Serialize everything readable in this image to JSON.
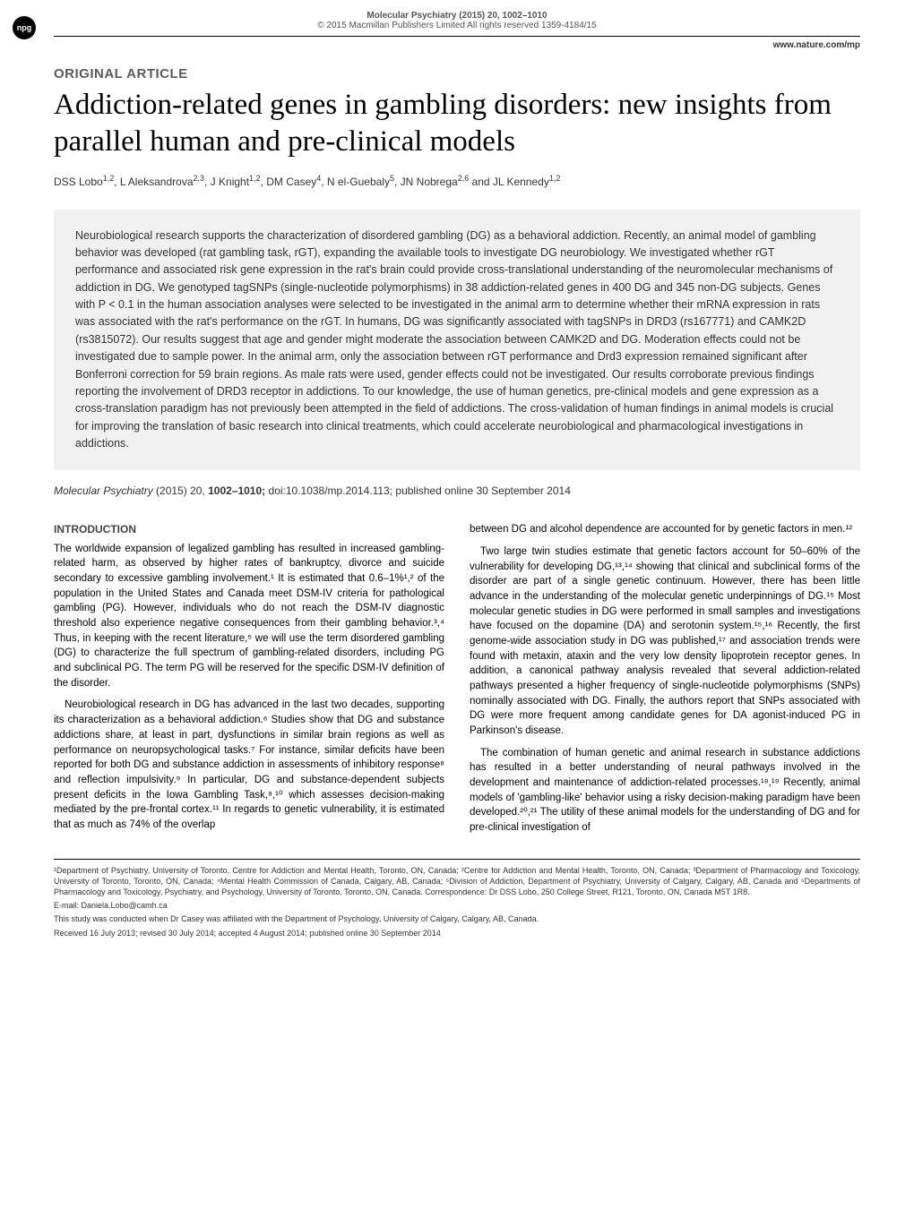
{
  "header": {
    "npg": "npg",
    "journal_line": "Molecular Psychiatry (2015) 20, 1002–1010",
    "copyright": "© 2015 Macmillan Publishers Limited   All rights reserved 1359-4184/15",
    "website": "www.nature.com/mp"
  },
  "article": {
    "type": "ORIGINAL ARTICLE",
    "title": "Addiction-related genes in gambling disorders: new insights from parallel human and pre-clinical models",
    "authors_html": "DSS Lobo<sup>1,2</sup>, L Aleksandrova<sup>2,3</sup>, J Knight<sup>1,2</sup>, DM Casey<sup>4</sup>, N el-Guebaly<sup>5</sup>, JN Nobrega<sup>2,6</sup> and JL Kennedy<sup>1,2</sup>"
  },
  "abstract": "Neurobiological research supports the characterization of disordered gambling (DG) as a behavioral addiction. Recently, an animal model of gambling behavior was developed (rat gambling task, rGT), expanding the available tools to investigate DG neurobiology. We investigated whether rGT performance and associated risk gene expression in the rat's brain could provide cross-translational understanding of the neuromolecular mechanisms of addiction in DG. We genotyped tagSNPs (single-nucleotide polymorphisms) in 38 addiction-related genes in 400 DG and 345 non-DG subjects. Genes with P < 0.1 in the human association analyses were selected to be investigated in the animal arm to determine whether their mRNA expression in rats was associated with the rat's performance on the rGT. In humans, DG was significantly associated with tagSNPs in DRD3 (rs167771) and CAMK2D (rs3815072). Our results suggest that age and gender might moderate the association between CAMK2D and DG. Moderation effects could not be investigated due to sample power. In the animal arm, only the association between rGT performance and Drd3 expression remained significant after Bonferroni correction for 59 brain regions. As male rats were used, gender effects could not be investigated. Our results corroborate previous findings reporting the involvement of DRD3 receptor in addictions. To our knowledge, the use of human genetics, pre-clinical models and gene expression as a cross-translation paradigm has not previously been attempted in the field of addictions. The cross-validation of human findings in animal models is crucial for improving the translation of basic research into clinical treatments, which could accelerate neurobiological and pharmacological investigations in addictions.",
  "citation": {
    "journal": "Molecular Psychiatry",
    "year_vol": "(2015) 20,",
    "pages": "1002–1010;",
    "doi": "doi:10.1038/mp.2014.113; published online 30 September 2014"
  },
  "body": {
    "heading": "INTRODUCTION",
    "left": {
      "p1": "The worldwide expansion of legalized gambling has resulted in increased gambling-related harm, as observed by higher rates of bankruptcy, divorce and suicide secondary to excessive gambling involvement.¹ It is estimated that 0.6–1%¹,² of the population in the United States and Canada meet DSM-IV criteria for pathological gambling (PG). However, individuals who do not reach the DSM-IV diagnostic threshold also experience negative consequences from their gambling behavior.³,⁴ Thus, in keeping with the recent literature,⁵ we will use the term disordered gambling (DG) to characterize the full spectrum of gambling-related disorders, including PG and subclinical PG. The term PG will be reserved for the specific DSM-IV definition of the disorder.",
      "p2": "Neurobiological research in DG has advanced in the last two decades, supporting its characterization as a behavioral addiction.⁶ Studies show that DG and substance addictions share, at least in part, dysfunctions in similar brain regions as well as performance on neuropsychological tasks.⁷ For instance, similar deficits have been reported for both DG and substance addiction in assessments of inhibitory response⁸ and reflection impulsivity.⁹ In particular, DG and substance-dependent subjects present deficits in the Iowa Gambling Task,⁸,¹⁰ which assesses decision-making mediated by the pre-frontal cortex.¹¹ In regards to genetic vulnerability, it is estimated that as much as 74% of the overlap"
    },
    "right": {
      "p1": "between DG and alcohol dependence are accounted for by genetic factors in men.¹²",
      "p2": "Two large twin studies estimate that genetic factors account for 50–60% of the vulnerability for developing DG,¹³,¹⁴ showing that clinical and subclinical forms of the disorder are part of a single genetic continuum. However, there has been little advance in the understanding of the molecular genetic underpinnings of DG.¹⁵ Most molecular genetic studies in DG were performed in small samples and investigations have focused on the dopamine (DA) and serotonin system.¹⁵,¹⁶ Recently, the first genome-wide association study in DG was published,¹⁷ and association trends were found with metaxin, ataxin and the very low density lipoprotein receptor genes. In addition, a canonical pathway analysis revealed that several addiction-related pathways presented a higher frequency of single-nucleotide polymorphisms (SNPs) nominally associated with DG. Finally, the authors report that SNPs associated with DG were more frequent among candidate genes for DA agonist-induced PG in Parkinson's disease.",
      "p3": "The combination of human genetic and animal research in substance addictions has resulted in a better understanding of neural pathways involved in the development and maintenance of addiction-related processes.¹⁸,¹⁹ Recently, animal models of 'gambling-like' behavior using a risky decision-making paradigm have been developed.²⁰,²¹ The utility of these animal models for the understanding of DG and for pre-clinical investigation of"
    }
  },
  "footer": {
    "affiliations": "¹Department of Psychiatry, University of Toronto, Centre for Addiction and Mental Health, Toronto, ON, Canada; ²Centre for Addiction and Mental Health, Toronto, ON, Canada; ³Department of Pharmacology and Toxicology, University of Toronto, Toronto, ON, Canada; ⁴Mental Health Commission of Canada, Calgary, AB, Canada; ⁵Division of Addiction, Department of Psychiatry, University of Calgary, Calgary, AB, Canada and ⁶Departments of Pharmacology and Toxicology, Psychiatry, and Psychology, University of Toronto, Toronto, ON, Canada. Correspondence: Dr DSS Lobo, 250 College Street, R121, Toronto, ON, Canada M5T 1R8.",
    "email": "E-mail: Daniela.Lobo@camh.ca",
    "note": "This study was conducted when Dr Casey was affiliated with the Department of Psychology, University of Calgary, Calgary, AB, Canada.",
    "dates": "Received 16 July 2013; revised 30 July 2014; accepted 4 August 2014; published online 30 September 2014"
  },
  "style": {
    "background": "#ffffff",
    "abstract_bg": "#f0f0f0",
    "text_color": "#000000",
    "muted_color": "#555555"
  }
}
